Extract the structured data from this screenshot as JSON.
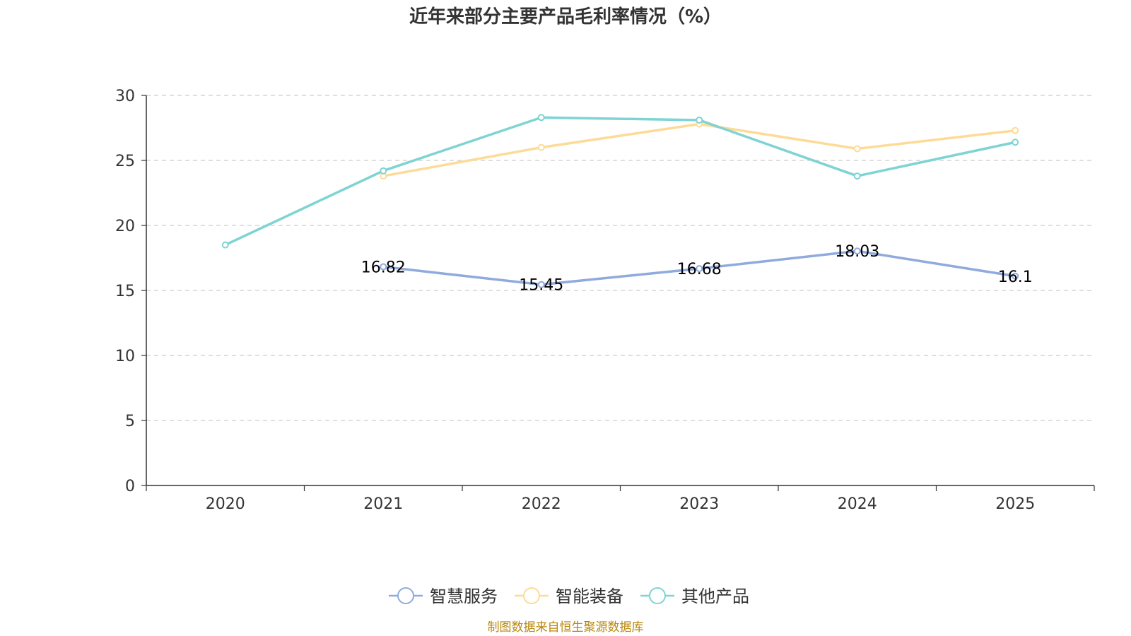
{
  "chart_data": {
    "type": "line",
    "title": "近年来部分主要产品毛利率情况（%）",
    "categories": [
      "2020",
      "2021",
      "2022",
      "2023",
      "2024",
      "2025"
    ],
    "ylim": [
      0,
      30
    ],
    "yticks": [
      "0",
      "5",
      "10",
      "15",
      "20",
      "25",
      "30"
    ],
    "grid": true,
    "legend_position": "bottom-center",
    "series": [
      {
        "name": "智慧服务",
        "color": "#8faadc",
        "values": [
          null,
          16.82,
          15.45,
          16.68,
          18.03,
          16.1
        ],
        "labels": [
          null,
          "16.82",
          "15.45",
          "16.68",
          "18.03",
          "16.1"
        ]
      },
      {
        "name": "智能装备",
        "color": "#fddb97",
        "values": [
          null,
          23.8,
          26.0,
          27.8,
          25.9,
          27.3
        ]
      },
      {
        "name": "其他产品",
        "color": "#7fd3d3",
        "values": [
          18.5,
          24.2,
          28.3,
          28.1,
          23.8,
          26.4
        ]
      }
    ]
  },
  "footer": {
    "source": "制图数据来自恒生聚源数据库"
  }
}
